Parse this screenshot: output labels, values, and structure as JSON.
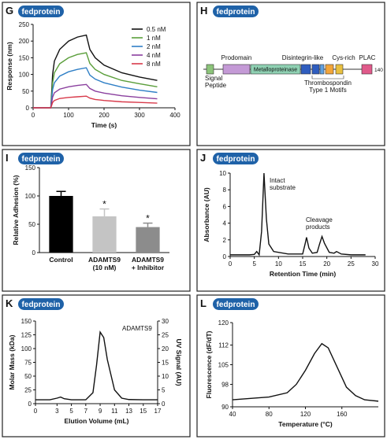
{
  "panels": [
    {
      "letter": "G",
      "badge": "fedprotein"
    },
    {
      "letter": "H",
      "badge": "fedprotein"
    },
    {
      "letter": "I",
      "badge": "fedprotein"
    },
    {
      "letter": "J",
      "badge": "fedprotein"
    },
    {
      "letter": "K",
      "badge": "fedprotein"
    },
    {
      "letter": "L",
      "badge": "fedprotein"
    }
  ],
  "diagram": {
    "domains": [
      "Signal\nPeptide",
      "Prodomain",
      "Metalloproteinase",
      "Disintegrin-like",
      "Thrombospondin\nType 1 Motifs",
      "Cys-rich",
      "PLAC"
    ],
    "end_label": "140"
  },
  "chart_data": [
    {
      "type": "line",
      "x_label": "Time (s)",
      "y_label": "Response (nm)",
      "x": [
        0,
        50,
        55,
        60,
        75,
        100,
        125,
        150,
        160,
        175,
        200,
        250,
        300,
        350
      ],
      "series": [
        {
          "name": "0.5 nM",
          "color": "#111111",
          "values": [
            0,
            0,
            100,
            140,
            175,
            200,
            212,
            218,
            175,
            150,
            128,
            105,
            92,
            82
          ]
        },
        {
          "name": "1 nM",
          "color": "#5a9e3a",
          "values": [
            0,
            0,
            75,
            105,
            132,
            150,
            160,
            165,
            133,
            115,
            100,
            82,
            72,
            63
          ]
        },
        {
          "name": "2 nM",
          "color": "#2f7fc6",
          "values": [
            0,
            0,
            55,
            75,
            95,
            108,
            115,
            120,
            98,
            86,
            75,
            62,
            53,
            46
          ]
        },
        {
          "name": "4 nM",
          "color": "#8a3f9e",
          "values": [
            0,
            0,
            32,
            45,
            56,
            63,
            67,
            70,
            58,
            50,
            44,
            36,
            31,
            27
          ]
        },
        {
          "name": "8 nM",
          "color": "#d83a4a",
          "values": [
            0,
            0,
            16,
            22,
            28,
            31,
            33,
            35,
            29,
            25,
            22,
            18,
            16,
            14
          ]
        }
      ],
      "xlim": [
        0,
        400
      ],
      "xticks": [
        0,
        100,
        200,
        300,
        400
      ],
      "ylim": [
        0,
        250
      ],
      "yticks": [
        0,
        50,
        100,
        150,
        200,
        250
      ],
      "legend": "top-right"
    },
    {
      "type": "bar",
      "y_label": "Relative Adhesion (%)",
      "categories": [
        "Control",
        "ADAMTS9\n(10 nM)",
        "ADAMTS9\n+ Inhibitor"
      ],
      "values": [
        100,
        64,
        45
      ],
      "errors": [
        8,
        13,
        7
      ],
      "colors": [
        "#000000",
        "#c4c4c4",
        "#8c8c8c"
      ],
      "significance": [
        null,
        "*",
        "*"
      ],
      "ylim": [
        0,
        150
      ],
      "yticks": [
        0,
        50,
        100,
        150
      ]
    },
    {
      "type": "line",
      "x_label": "Retention Time (min)",
      "y_label": "Absorbance (AU)",
      "annotations": [
        "Intact\nsubstrate",
        "Cleavage\nproducts"
      ],
      "x": [
        0,
        4,
        5,
        5.5,
        6,
        6.5,
        7,
        7.5,
        8,
        9,
        12,
        15,
        15.5,
        15.8,
        16.3,
        17,
        18,
        18.5,
        19,
        19.5,
        20.5,
        21.5,
        22,
        23,
        25,
        28
      ],
      "series": [
        {
          "color": "#111111",
          "values": [
            0.2,
            0.2,
            0.25,
            0.6,
            0.2,
            3,
            10,
            4.5,
            1.5,
            0.6,
            0.3,
            0.3,
            1.5,
            2.3,
            1,
            0.4,
            0.5,
            1.5,
            2.4,
            1.6,
            0.5,
            0.4,
            0.6,
            0.3,
            0.2,
            0.2
          ]
        }
      ],
      "xlim": [
        0,
        30
      ],
      "xticks": [
        0,
        5,
        10,
        15,
        20,
        25,
        30
      ],
      "ylim": [
        0,
        10
      ],
      "yticks": [
        0,
        2,
        4,
        6,
        8,
        10
      ]
    },
    {
      "type": "line",
      "x_label": "Elution Volume (mL)",
      "y_label": "Molar Mass (kDa)",
      "y2_label": "UV Signal (AU)",
      "annotations": [
        "ADAMTS9"
      ],
      "x": [
        0,
        2,
        3,
        3.5,
        4,
        5,
        7,
        8,
        8.5,
        9,
        9.5,
        10,
        11,
        12,
        13,
        15,
        17
      ],
      "series": [
        {
          "color": "#111111",
          "axis": "y2",
          "values": [
            1.4,
            1.4,
            2,
            2.4,
            1.8,
            1.4,
            1.4,
            4,
            14,
            26,
            24,
            16,
            5,
            2,
            1.5,
            1.4,
            1.4
          ]
        }
      ],
      "xlim": [
        0,
        17
      ],
      "xticks": [
        0,
        3,
        5,
        7,
        9,
        11,
        13,
        15,
        17
      ],
      "ylim": [
        0,
        150
      ],
      "yticks": [
        0,
        25,
        50,
        75,
        100,
        125,
        150
      ],
      "y2lim": [
        0,
        30
      ],
      "y2ticks": [
        0,
        5,
        10,
        15,
        20,
        25,
        30
      ]
    },
    {
      "type": "line",
      "x_label": "Temperature (°C)",
      "y_label": "Fluorescence (dF/dT)",
      "x": [
        40,
        60,
        80,
        100,
        110,
        120,
        130,
        138,
        145,
        155,
        165,
        175,
        185,
        200
      ],
      "series": [
        {
          "color": "#111111",
          "values": [
            92.5,
            93,
            93.5,
            95,
            98,
            103,
            109,
            112.5,
            111,
            104,
            97,
            94,
            92.5,
            92
          ]
        }
      ],
      "xlim": [
        40,
        200
      ],
      "xticks": [
        40,
        80,
        120,
        160
      ],
      "ylim": [
        90,
        120
      ],
      "yticks": [
        90,
        98,
        105,
        112,
        120
      ]
    }
  ]
}
